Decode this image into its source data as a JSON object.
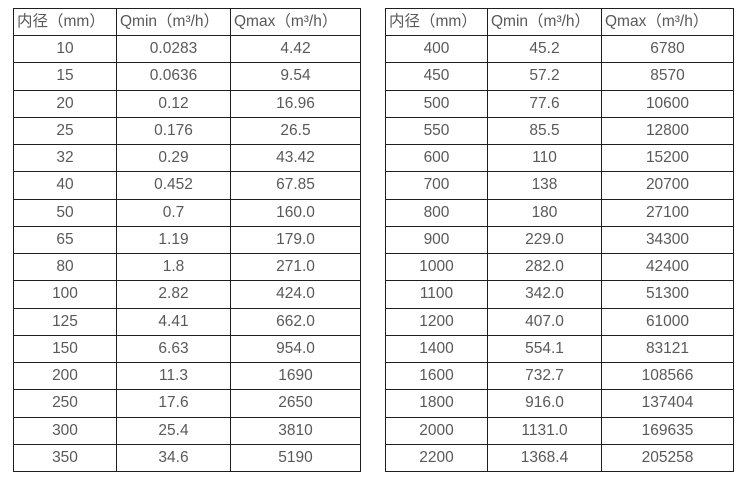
{
  "colors": {
    "border": "#1f1f1f",
    "text": "#595959",
    "background": "#ffffff"
  },
  "tables": [
    {
      "name": "flow-rate-table-small-diameters",
      "headers": [
        "内径（mm）",
        "Qmin（m³/h）",
        "Qmax（m³/h）"
      ],
      "rows": [
        [
          "10",
          "0.0283",
          "4.42"
        ],
        [
          "15",
          "0.0636",
          "9.54"
        ],
        [
          "20",
          "0.12",
          "16.96"
        ],
        [
          "25",
          "0.176",
          "26.5"
        ],
        [
          "32",
          "0.29",
          "43.42"
        ],
        [
          "40",
          "0.452",
          "67.85"
        ],
        [
          "50",
          "0.7",
          "160.0"
        ],
        [
          "65",
          "1.19",
          "179.0"
        ],
        [
          "80",
          "1.8",
          "271.0"
        ],
        [
          "100",
          "2.82",
          "424.0"
        ],
        [
          "125",
          "4.41",
          "662.0"
        ],
        [
          "150",
          "6.63",
          "954.0"
        ],
        [
          "200",
          "11.3",
          "1690"
        ],
        [
          "250",
          "17.6",
          "2650"
        ],
        [
          "300",
          "25.4",
          "3810"
        ],
        [
          "350",
          "34.6",
          "5190"
        ]
      ]
    },
    {
      "name": "flow-rate-table-large-diameters",
      "headers": [
        "内径（mm）",
        "Qmin（m³/h）",
        "Qmax（m³/h）"
      ],
      "rows": [
        [
          "400",
          "45.2",
          "6780"
        ],
        [
          "450",
          "57.2",
          "8570"
        ],
        [
          "500",
          "77.6",
          "10600"
        ],
        [
          "550",
          "85.5",
          "12800"
        ],
        [
          "600",
          "110",
          "15200"
        ],
        [
          "700",
          "138",
          "20700"
        ],
        [
          "800",
          "180",
          "27100"
        ],
        [
          "900",
          "229.0",
          "34300"
        ],
        [
          "1000",
          "282.0",
          "42400"
        ],
        [
          "1100",
          "342.0",
          "51300"
        ],
        [
          "1200",
          "407.0",
          "61000"
        ],
        [
          "1400",
          "554.1",
          "83121"
        ],
        [
          "1600",
          "732.7",
          "108566"
        ],
        [
          "1800",
          "916.0",
          "137404"
        ],
        [
          "2000",
          "1131.0",
          "169635"
        ],
        [
          "2200",
          "1368.4",
          "205258"
        ]
      ]
    }
  ]
}
